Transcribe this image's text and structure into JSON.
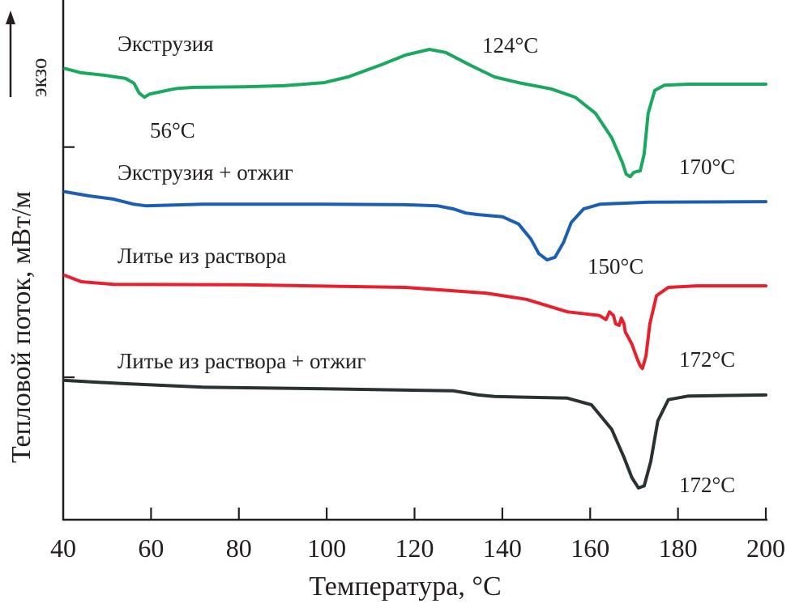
{
  "chart_data": {
    "type": "line",
    "title": "",
    "xlabel": "Температура, °C",
    "ylabel": "Тепловой поток, мВт/м",
    "ylabel_direction": "экзо",
    "xlim": [
      40,
      200
    ],
    "xticks": [
      "40",
      "60",
      "80",
      "100",
      "120",
      "140",
      "160",
      "180",
      "200"
    ],
    "ylim": [
      0,
      100
    ],
    "y_units": "arbitrary (no scale printed)",
    "grid": false,
    "series": [
      {
        "name": "Экструзия",
        "color": "#1aa760",
        "x": [
          40.4,
          44.1,
          49.6,
          54.2,
          56.1,
          57.3,
          58.5,
          59.7,
          62.5,
          65.3,
          66.2,
          69.9,
          81.0,
          90.2,
          99.4,
          104.9,
          112.3,
          117.9,
          123.4,
          127.1,
          132.6,
          138.2,
          143.7,
          151.1,
          156.6,
          161.2,
          164.9,
          167.3,
          168.2,
          169.1,
          169.9,
          170.6,
          171.4,
          172.3,
          173.2,
          174.7,
          176.9,
          182.4,
          200
        ],
        "y": [
          86.8,
          86.0,
          85.5,
          84.9,
          84.0,
          82.1,
          81.3,
          81.9,
          82.4,
          82.9,
          83.0,
          83.2,
          83.3,
          83.5,
          84.1,
          85.2,
          87.5,
          89.4,
          90.5,
          89.9,
          87.5,
          85.2,
          84.1,
          82.9,
          81.3,
          78.2,
          73.5,
          68.8,
          66.5,
          66.0,
          66.8,
          67.0,
          67.1,
          70.4,
          78.2,
          82.6,
          83.6,
          83.8,
          83.8
        ]
      },
      {
        "name": "Экструзия + отжиг",
        "color": "#1a5fb4",
        "x": [
          40.4,
          45.9,
          51.4,
          56.1,
          58.8,
          71.7,
          99.4,
          117.9,
          125.2,
          128.9,
          131.7,
          134.5,
          140.0,
          143.7,
          146.5,
          148.3,
          150.2,
          152.0,
          153.9,
          155.7,
          158.5,
          162.2,
          173.2,
          200
        ],
        "y": [
          63.1,
          62.3,
          61.7,
          60.7,
          60.4,
          60.7,
          60.7,
          60.6,
          60.4,
          59.8,
          59.0,
          58.7,
          58.3,
          56.9,
          54.0,
          51.2,
          50.0,
          50.5,
          53.3,
          57.2,
          59.8,
          60.7,
          61.1,
          61.2
        ]
      },
      {
        "name": "Литье из раствора",
        "color": "#e8202e",
        "x": [
          40.4,
          44.1,
          51.4,
          81.0,
          117.9,
          136.3,
          145.5,
          154.8,
          162.1,
          163.6,
          164.4,
          165.3,
          165.8,
          166.6,
          167.1,
          167.7,
          168.0,
          168.8,
          169.5,
          170.6,
          171.4,
          171.9,
          172.7,
          173.6,
          175.1,
          177.8,
          184.3,
          200
        ],
        "y": [
          47.0,
          45.8,
          45.3,
          45.2,
          44.7,
          43.6,
          42.4,
          40.0,
          39.3,
          38.5,
          40.0,
          39.3,
          37.7,
          37.4,
          38.8,
          37.7,
          36.1,
          34.9,
          33.8,
          31.2,
          29.6,
          29.1,
          31.5,
          37.7,
          43.1,
          44.7,
          45.0,
          45.0
        ]
      },
      {
        "name": "Литье из раствора + отжиг",
        "color": "#2a3133",
        "x": [
          40.4,
          53.3,
          71.7,
          99.4,
          128.9,
          134.5,
          138.2,
          154.8,
          160.3,
          164.9,
          167.7,
          169.5,
          171.0,
          172.3,
          173.8,
          175.4,
          177.8,
          182.4,
          200
        ],
        "y": [
          26.8,
          26.2,
          25.5,
          25.2,
          24.8,
          24.0,
          23.7,
          23.4,
          22.1,
          17.4,
          12.0,
          8.1,
          6.1,
          6.5,
          11.2,
          19.0,
          23.1,
          23.8,
          24.0
        ]
      }
    ],
    "annotations": [
      {
        "text": "Экструзия"
      },
      {
        "text": "124°C"
      },
      {
        "text": "56°C"
      },
      {
        "text": "Экструзия + отжиг"
      },
      {
        "text": "170°C"
      },
      {
        "text": "Литье из раствора"
      },
      {
        "text": "150°C"
      },
      {
        "text": "Литье из раствора + отжиг"
      },
      {
        "text": "172°C"
      },
      {
        "text": "172°C"
      }
    ]
  }
}
